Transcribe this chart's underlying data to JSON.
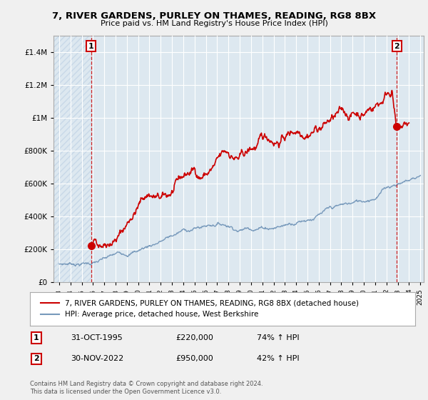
{
  "title": "7, RIVER GARDENS, PURLEY ON THAMES, READING, RG8 8BX",
  "subtitle": "Price paid vs. HM Land Registry's House Price Index (HPI)",
  "hpi_label": "HPI: Average price, detached house, West Berkshire",
  "property_label": "7, RIVER GARDENS, PURLEY ON THAMES, READING, RG8 8BX (detached house)",
  "footnote": "Contains HM Land Registry data © Crown copyright and database right 2024.\nThis data is licensed under the Open Government Licence v3.0.",
  "marker1_label": "31-OCT-1995",
  "marker1_price": "£220,000",
  "marker1_hpi": "74% ↑ HPI",
  "marker2_label": "30-NOV-2022",
  "marker2_price": "£950,000",
  "marker2_hpi": "42% ↑ HPI",
  "property_color": "#cc0000",
  "hpi_color": "#7799bb",
  "background_color": "#f0f0f0",
  "plot_bg_color": "#dde8f0",
  "hatch_color": "#c8d8e8",
  "grid_color": "#ffffff",
  "ylim": [
    0,
    1500000
  ],
  "yticks": [
    0,
    200000,
    400000,
    600000,
    800000,
    1000000,
    1200000,
    1400000
  ],
  "xlim_start": 1992.5,
  "xlim_end": 2025.3,
  "marker1_x": 1995.83,
  "marker1_y": 220000,
  "marker2_x": 2022.92,
  "marker2_y": 950000,
  "prop_anchors": [
    [
      1995.83,
      220000
    ],
    [
      1996.5,
      240000
    ],
    [
      1997.0,
      270000
    ],
    [
      1997.5,
      310000
    ],
    [
      1998.0,
      340000
    ],
    [
      1998.5,
      370000
    ],
    [
      1999.0,
      420000
    ],
    [
      1999.5,
      490000
    ],
    [
      2000.0,
      540000
    ],
    [
      2000.5,
      590000
    ],
    [
      2001.0,
      620000
    ],
    [
      2001.5,
      600000
    ],
    [
      2002.0,
      570000
    ],
    [
      2002.5,
      560000
    ],
    [
      2003.0,
      590000
    ],
    [
      2003.5,
      610000
    ],
    [
      2004.0,
      640000
    ],
    [
      2004.5,
      660000
    ],
    [
      2005.0,
      670000
    ],
    [
      2005.5,
      650000
    ],
    [
      2006.0,
      670000
    ],
    [
      2006.5,
      690000
    ],
    [
      2007.0,
      710000
    ],
    [
      2007.5,
      730000
    ],
    [
      2008.0,
      740000
    ],
    [
      2008.5,
      720000
    ],
    [
      2009.0,
      700000
    ],
    [
      2009.5,
      710000
    ],
    [
      2010.0,
      730000
    ],
    [
      2010.5,
      750000
    ],
    [
      2011.0,
      760000
    ],
    [
      2011.5,
      770000
    ],
    [
      2012.0,
      780000
    ],
    [
      2012.5,
      790000
    ],
    [
      2013.0,
      820000
    ],
    [
      2013.5,
      840000
    ],
    [
      2014.0,
      870000
    ],
    [
      2014.5,
      890000
    ],
    [
      2015.0,
      920000
    ],
    [
      2015.5,
      950000
    ],
    [
      2016.0,
      970000
    ],
    [
      2016.5,
      990000
    ],
    [
      2017.0,
      1010000
    ],
    [
      2017.5,
      1020000
    ],
    [
      2018.0,
      1010000
    ],
    [
      2018.5,
      1000000
    ],
    [
      2019.0,
      1010000
    ],
    [
      2019.5,
      1020000
    ],
    [
      2020.0,
      1030000
    ],
    [
      2020.5,
      1060000
    ],
    [
      2021.0,
      1090000
    ],
    [
      2021.5,
      1120000
    ],
    [
      2022.0,
      1180000
    ],
    [
      2022.5,
      1230000
    ],
    [
      2022.92,
      950000
    ],
    [
      2023.3,
      960000
    ],
    [
      2024.0,
      970000
    ]
  ],
  "hpi_anchors": [
    [
      1993.0,
      110000
    ],
    [
      1994.0,
      115000
    ],
    [
      1995.0,
      118000
    ],
    [
      1996.0,
      122000
    ],
    [
      1997.0,
      132000
    ],
    [
      1998.0,
      145000
    ],
    [
      1999.0,
      160000
    ],
    [
      2000.0,
      180000
    ],
    [
      2001.0,
      210000
    ],
    [
      2002.0,
      240000
    ],
    [
      2003.0,
      265000
    ],
    [
      2004.0,
      290000
    ],
    [
      2005.0,
      300000
    ],
    [
      2006.0,
      315000
    ],
    [
      2007.0,
      335000
    ],
    [
      2008.0,
      330000
    ],
    [
      2009.0,
      310000
    ],
    [
      2010.0,
      330000
    ],
    [
      2011.0,
      340000
    ],
    [
      2012.0,
      345000
    ],
    [
      2013.0,
      360000
    ],
    [
      2014.0,
      390000
    ],
    [
      2015.0,
      415000
    ],
    [
      2016.0,
      440000
    ],
    [
      2017.0,
      455000
    ],
    [
      2018.0,
      460000
    ],
    [
      2019.0,
      465000
    ],
    [
      2020.0,
      475000
    ],
    [
      2021.0,
      510000
    ],
    [
      2022.0,
      570000
    ],
    [
      2023.0,
      600000
    ],
    [
      2024.0,
      620000
    ],
    [
      2025.0,
      650000
    ]
  ]
}
